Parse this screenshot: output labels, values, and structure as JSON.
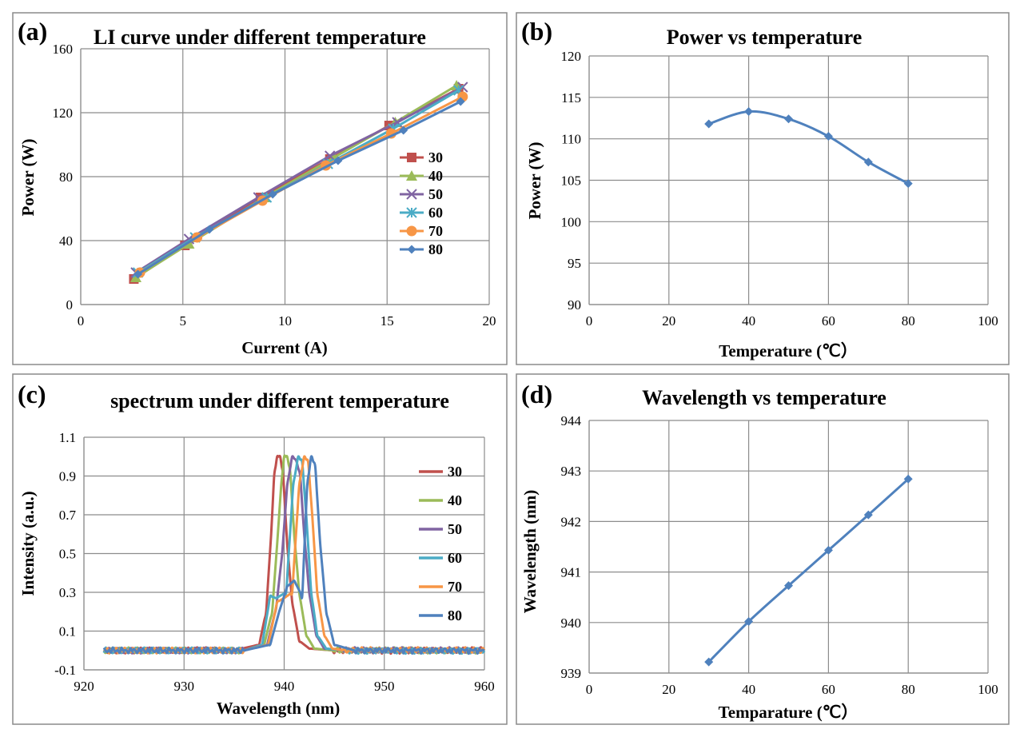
{
  "chart_data": [
    {
      "id": "a",
      "type": "line",
      "panel_label": "(a)",
      "title": "LI curve under different temperature",
      "xlabel": "Current (A)",
      "ylabel": "Power (W)",
      "xlim": [
        0,
        20
      ],
      "ylim": [
        0,
        160
      ],
      "xticks": [
        0,
        5,
        10,
        15,
        20
      ],
      "yticks": [
        0,
        40,
        80,
        120,
        160
      ],
      "grid": true,
      "legend": "right",
      "series": [
        {
          "name": "30",
          "color": "#C0504D",
          "marker": "square",
          "x": [
            2.6,
            5.1,
            8.8,
            12.2,
            15.1,
            18.5
          ],
          "y": [
            16,
            37,
            67,
            91,
            112,
            135
          ]
        },
        {
          "name": "40",
          "color": "#9BBB59",
          "marker": "triangle",
          "x": [
            2.7,
            5.3,
            9.0,
            12.4,
            15.4,
            18.4
          ],
          "y": [
            17,
            38,
            67,
            92,
            114,
            137
          ]
        },
        {
          "name": "50",
          "color": "#8064A2",
          "marker": "x",
          "x": [
            2.7,
            5.3,
            8.7,
            12.2,
            15.5,
            18.7
          ],
          "y": [
            20,
            41,
            67,
            93,
            114,
            136
          ]
        },
        {
          "name": "60",
          "color": "#4BACC6",
          "marker": "star",
          "x": [
            2.8,
            5.6,
            9.1,
            12.1,
            15.3,
            18.5
          ],
          "y": [
            20,
            42,
            67,
            88,
            110,
            134
          ]
        },
        {
          "name": "70",
          "color": "#F79646",
          "marker": "circle",
          "x": [
            2.9,
            5.7,
            8.9,
            12.0,
            15.2,
            18.7
          ],
          "y": [
            20,
            42,
            65,
            87,
            107,
            130
          ]
        },
        {
          "name": "80",
          "color": "#4F81BD",
          "marker": "diamond",
          "x": [
            2.8,
            6.3,
            9.4,
            12.6,
            15.8,
            18.6
          ],
          "y": [
            19,
            47,
            69,
            90,
            109,
            127
          ]
        }
      ]
    },
    {
      "id": "b",
      "type": "line",
      "panel_label": "(b)",
      "title": "Power vs temperature",
      "xlabel": "Temperature (℃）",
      "ylabel": "Power (W)",
      "xlim": [
        0,
        100
      ],
      "ylim": [
        90,
        120
      ],
      "xticks": [
        0,
        20,
        40,
        60,
        80,
        100
      ],
      "yticks": [
        90,
        95,
        100,
        105,
        110,
        115,
        120
      ],
      "grid": true,
      "series": [
        {
          "name": "",
          "color": "#4F81BD",
          "marker": "diamond",
          "x": [
            30,
            40,
            50,
            60,
            70,
            80
          ],
          "y": [
            111.8,
            113.3,
            112.4,
            110.3,
            107.2,
            104.6
          ]
        }
      ]
    },
    {
      "id": "c",
      "type": "line",
      "panel_label": "(c)",
      "title": "spectrum under different temperature",
      "xlabel": "Wavelength (nm)",
      "ylabel": "Intensity (a.u.)",
      "xlim": [
        920,
        960
      ],
      "ylim": [
        -0.1,
        1.1
      ],
      "xticks": [
        920,
        930,
        940,
        950,
        960
      ],
      "yticks": [
        -0.1,
        0.1,
        0.3,
        0.5,
        0.7,
        0.9,
        1.1
      ],
      "grid": true,
      "legend": "right",
      "series": [
        {
          "name": "30",
          "color": "#C0504D",
          "peak": 939.2,
          "side": 0.12,
          "x": [
            922,
            935,
            937.5,
            938.2,
            938.7,
            939.0,
            939.3,
            939.6,
            939.9,
            940.3,
            940.8,
            941.5,
            942.5,
            945,
            960
          ],
          "y": [
            0,
            0,
            0.03,
            0.2,
            0.6,
            0.9,
            1.0,
            1.0,
            0.9,
            0.55,
            0.25,
            0.05,
            0.01,
            0,
            0
          ]
        },
        {
          "name": "40",
          "color": "#9BBB59",
          "peak": 940.0,
          "side": 0.22,
          "x": [
            922,
            936,
            938.0,
            938.8,
            939.3,
            939.7,
            940.0,
            940.3,
            940.6,
            941.0,
            941.5,
            942.2,
            943.0,
            945,
            960
          ],
          "y": [
            0,
            0,
            0.03,
            0.2,
            0.55,
            0.85,
            1.0,
            1.0,
            0.92,
            0.6,
            0.3,
            0.08,
            0.01,
            0,
            0
          ]
        },
        {
          "name": "50",
          "color": "#8064A2",
          "peak": 940.8,
          "side": 0.2,
          "x": [
            922,
            936,
            938.3,
            939.2,
            939.8,
            940.3,
            940.8,
            941.2,
            941.6,
            942.0,
            942.5,
            943.2,
            944.0,
            946,
            960
          ],
          "y": [
            0,
            0,
            0.03,
            0.22,
            0.5,
            0.85,
            1.0,
            0.98,
            0.9,
            0.6,
            0.3,
            0.08,
            0.01,
            0,
            0
          ]
        },
        {
          "name": "60",
          "color": "#4BACC6",
          "peak": 941.4,
          "side": 0.28,
          "x": [
            922,
            936,
            937.8,
            938.6,
            939.2,
            940.2,
            940.9,
            941.4,
            941.8,
            942.2,
            942.7,
            943.3,
            944.2,
            946,
            960
          ],
          "y": [
            0,
            0,
            0.03,
            0.28,
            0.27,
            0.3,
            0.85,
            1.0,
            0.97,
            0.7,
            0.3,
            0.08,
            0.01,
            0,
            0
          ]
        },
        {
          "name": "70",
          "color": "#F79646",
          "peak": 942.0,
          "side": 0.26,
          "x": [
            922,
            936,
            938.4,
            939.3,
            940.0,
            940.8,
            941.5,
            942.0,
            942.4,
            942.8,
            943.3,
            944.0,
            944.8,
            946,
            960
          ],
          "y": [
            0,
            0,
            0.03,
            0.25,
            0.27,
            0.3,
            0.85,
            1.0,
            0.97,
            0.7,
            0.3,
            0.08,
            0.01,
            0,
            0
          ]
        },
        {
          "name": "80",
          "color": "#4F81BD",
          "peak": 942.7,
          "side": 0.33,
          "x": [
            922,
            936,
            938.6,
            939.5,
            940.3,
            941.0,
            941.8,
            942.3,
            942.7,
            943.1,
            943.6,
            944.2,
            945.0,
            947,
            960
          ],
          "y": [
            0,
            0,
            0.03,
            0.2,
            0.33,
            0.36,
            0.28,
            0.85,
            1.0,
            0.95,
            0.55,
            0.2,
            0.03,
            0,
            0
          ]
        }
      ]
    },
    {
      "id": "d",
      "type": "line",
      "panel_label": "(d)",
      "title": "Wavelength vs temperature",
      "xlabel": "Temparature (℃）",
      "ylabel": "Wavelength (nm)",
      "xlim": [
        0,
        100
      ],
      "ylim": [
        939,
        944
      ],
      "xticks": [
        0,
        20,
        40,
        60,
        80,
        100
      ],
      "yticks": [
        939,
        940,
        941,
        942,
        943,
        944
      ],
      "grid": true,
      "series": [
        {
          "name": "",
          "color": "#4F81BD",
          "marker": "diamond",
          "x": [
            30,
            40,
            50,
            60,
            70,
            80
          ],
          "y": [
            939.22,
            940.02,
            940.73,
            941.43,
            942.13,
            942.84
          ]
        }
      ]
    }
  ]
}
